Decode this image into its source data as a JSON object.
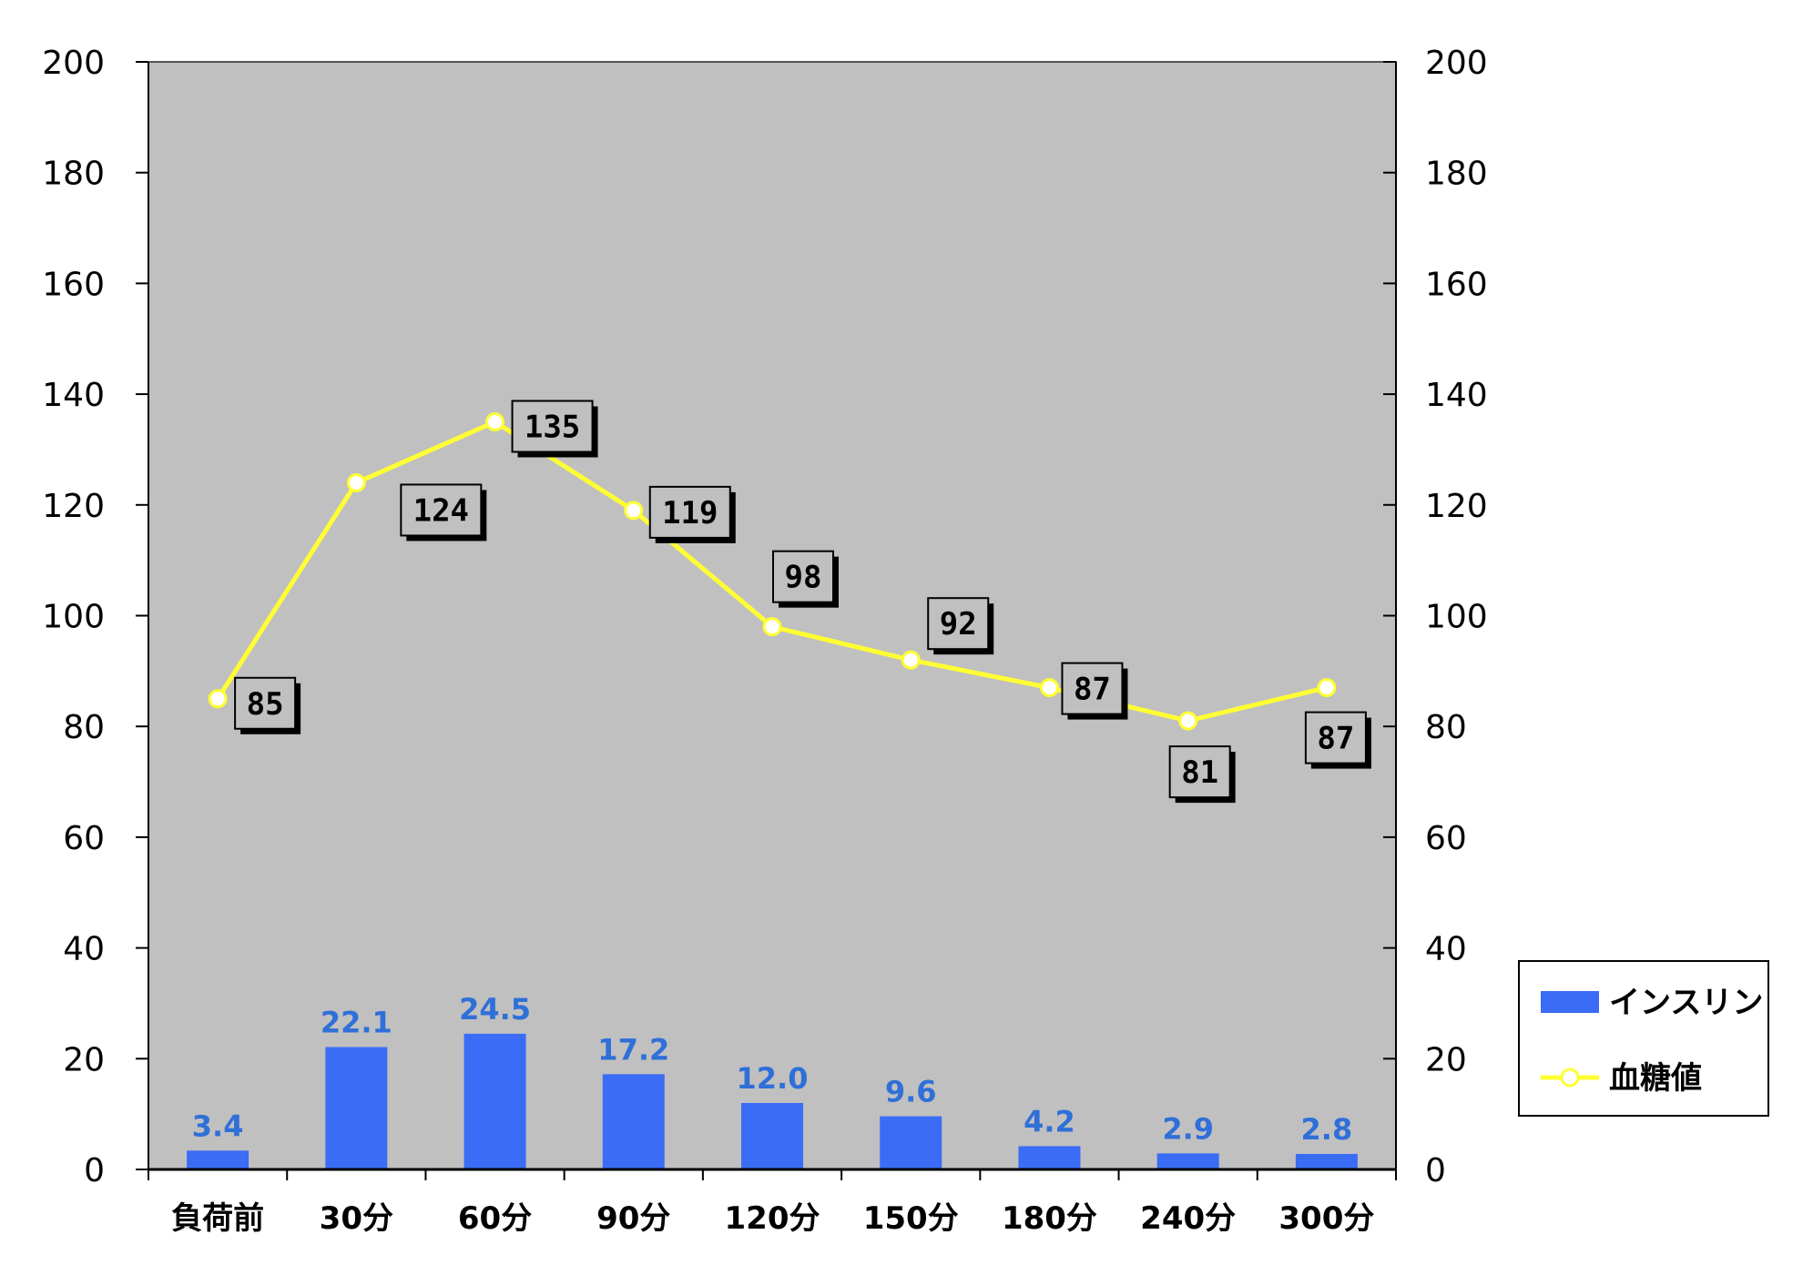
{
  "chart_data": {
    "type": "bar+line",
    "categories": [
      "負荷前",
      "30分",
      "60分",
      "90分",
      "120分",
      "150分",
      "180分",
      "240分",
      "300分"
    ],
    "series": [
      {
        "name": "インスリン",
        "type": "bar",
        "values": [
          3.4,
          22.1,
          24.5,
          17.2,
          12.0,
          9.6,
          4.2,
          2.9,
          2.8
        ],
        "color": "#3b6cf5"
      },
      {
        "name": "血糖値",
        "type": "line",
        "values": [
          85,
          124,
          135,
          119,
          98,
          92,
          87,
          81,
          87
        ],
        "color": "#ffff33"
      }
    ],
    "bar_labels": [
      "3.4",
      "22.1",
      "24.5",
      "17.2",
      "12.0",
      "9.6",
      "4.2",
      "2.9",
      "2.8"
    ],
    "line_labels": [
      "85",
      "124",
      "135",
      "119",
      "98",
      "92",
      "87",
      "81",
      "87"
    ],
    "y_left": {
      "min": 0,
      "max": 200,
      "ticks": [
        0,
        20,
        40,
        60,
        80,
        100,
        120,
        140,
        160,
        180,
        200
      ]
    },
    "y_right": {
      "min": 0,
      "max": 200,
      "ticks": [
        0,
        20,
        40,
        60,
        80,
        100,
        120,
        140,
        160,
        180,
        200
      ]
    },
    "plot_background": "#c0c0c0",
    "grid": false,
    "legend_position": "right"
  }
}
